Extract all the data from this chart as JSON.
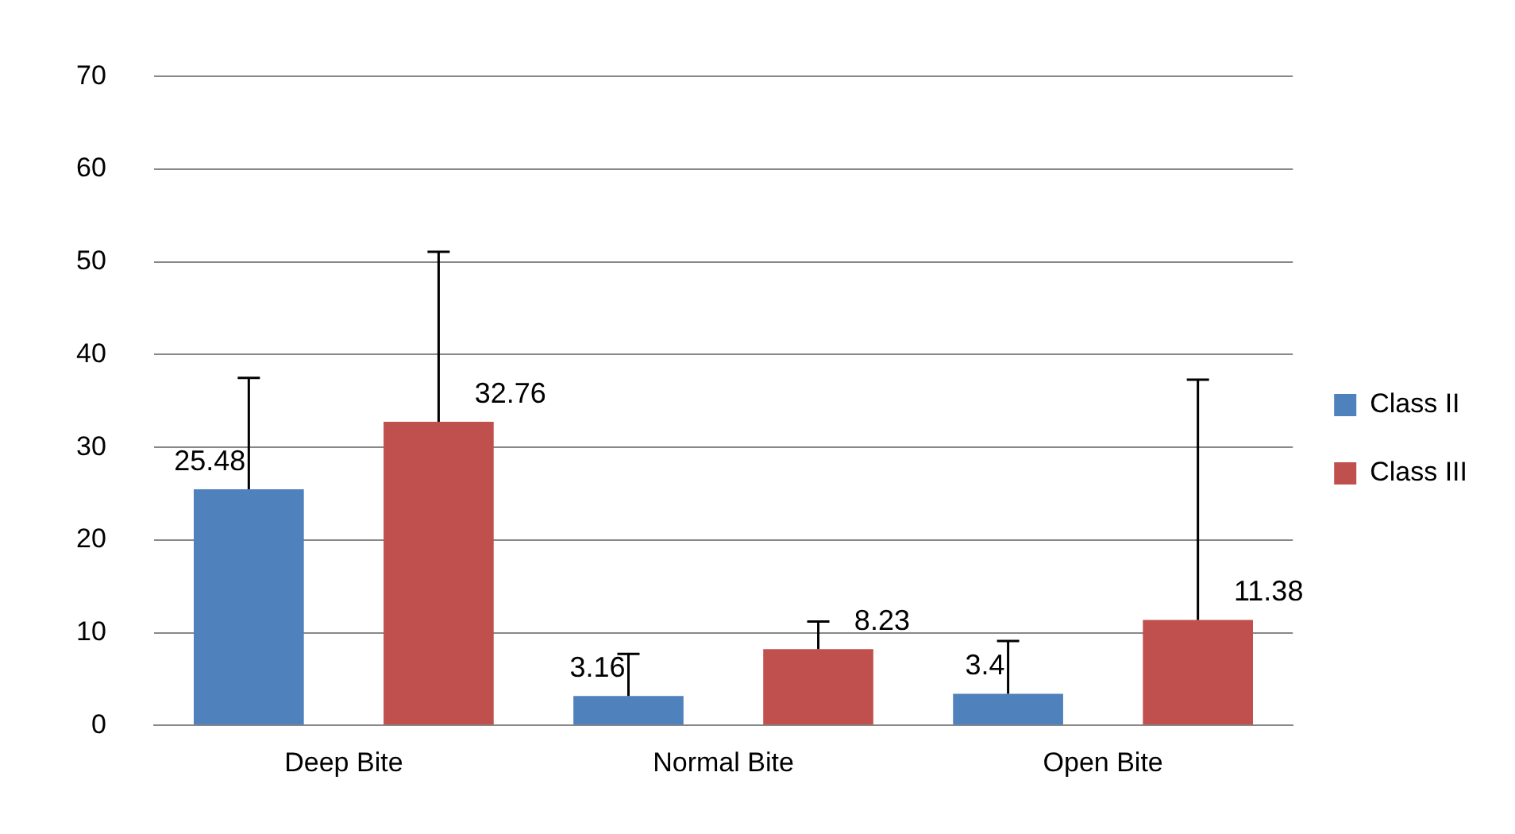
{
  "chart_data": {
    "type": "bar",
    "categories": [
      "Deep Bite",
      "Normal Bite",
      "Open Bite"
    ],
    "series": [
      {
        "name": "Class II",
        "color": "#4f81bd",
        "values": [
          25.48,
          3.16,
          3.4
        ],
        "errors": [
          [
            25.48,
            37.5
          ],
          [
            3.16,
            7.7
          ],
          [
            3.4,
            9.1
          ]
        ]
      },
      {
        "name": "Class III",
        "color": "#c0504d",
        "values": [
          32.76,
          8.23,
          11.38
        ],
        "errors": [
          [
            32.76,
            51.1
          ],
          [
            8.23,
            11.2
          ],
          [
            11.38,
            37.3
          ]
        ]
      }
    ],
    "ylim": [
      0,
      70
    ],
    "yticks": [
      0,
      10,
      20,
      30,
      40,
      50,
      60,
      70
    ],
    "grid": "y",
    "legend": "right",
    "data_labels": true
  }
}
